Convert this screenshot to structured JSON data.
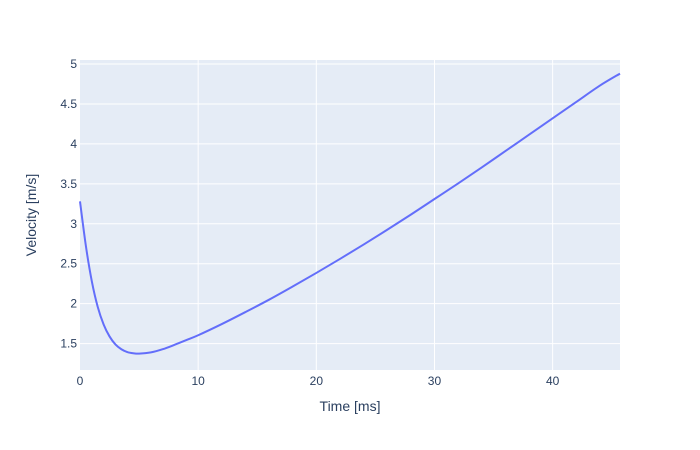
{
  "chart_data": {
    "type": "line",
    "xlabel": "Time [ms]",
    "ylabel": "Velocity [m/s]",
    "xlim": [
      0,
      45.7
    ],
    "ylim": [
      1.17,
      5.05
    ],
    "xticks": [
      0,
      10,
      20,
      30,
      40
    ],
    "yticks": [
      1.5,
      2,
      2.5,
      3,
      3.5,
      4,
      4.5,
      5
    ],
    "xtick_labels": [
      "0",
      "10",
      "20",
      "30",
      "40"
    ],
    "ytick_labels": [
      "1.5",
      "2",
      "2.5",
      "3",
      "3.5",
      "4",
      "4.5",
      "5"
    ],
    "grid": true,
    "legend": "none",
    "colors": {
      "plot_bg": "#e5ecf6",
      "grid": "#ffffff",
      "line": "#636efa",
      "text": "#2a3f5f"
    },
    "series": [
      {
        "x": [
          0,
          0.5,
          1,
          1.5,
          2,
          2.5,
          3,
          3.5,
          4,
          4.5,
          5,
          6,
          7,
          8,
          9,
          10,
          12,
          14,
          16,
          18,
          20,
          22,
          24,
          26,
          28,
          30,
          32,
          34,
          36,
          38,
          40,
          42,
          44,
          45.7
        ],
        "y": [
          3.28,
          2.72,
          2.28,
          1.96,
          1.74,
          1.59,
          1.49,
          1.43,
          1.395,
          1.38,
          1.375,
          1.39,
          1.43,
          1.485,
          1.545,
          1.605,
          1.745,
          1.895,
          2.05,
          2.215,
          2.385,
          2.56,
          2.74,
          2.925,
          3.115,
          3.31,
          3.505,
          3.705,
          3.91,
          4.115,
          4.32,
          4.525,
          4.73,
          4.88
        ]
      }
    ]
  }
}
